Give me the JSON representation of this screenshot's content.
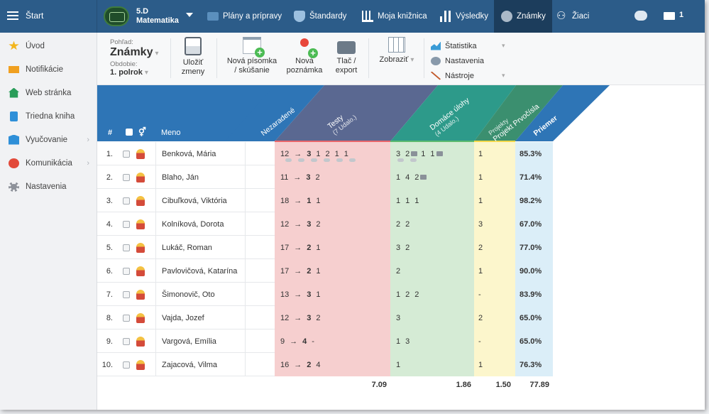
{
  "topbar": {
    "start_label": "Štart",
    "class_name": "5.D",
    "class_subject": "Matematika",
    "nav": [
      {
        "label": "Plány a prípravy",
        "icon": "plans-icon"
      },
      {
        "label": "Štandardy",
        "icon": "shield-icon"
      },
      {
        "label": "Moja knižnica",
        "icon": "library-icon"
      },
      {
        "label": "Výsledky",
        "icon": "bar-chart-icon"
      },
      {
        "label": "Známky",
        "icon": "grades-icon"
      },
      {
        "label": "Žiaci",
        "icon": "students-icon"
      }
    ],
    "active_nav": "Známky",
    "mail_count": "1"
  },
  "sidebar": {
    "items": [
      {
        "label": "Úvod",
        "icon": "star-icon"
      },
      {
        "label": "Notifikácie",
        "icon": "mail-icon"
      },
      {
        "label": "Web stránka",
        "icon": "home-icon"
      },
      {
        "label": "Triedna kniha",
        "icon": "book-icon"
      },
      {
        "label": "Vyučovanie",
        "icon": "teaching-icon"
      },
      {
        "label": "Komunikácia",
        "icon": "chat-icon"
      },
      {
        "label": "Nastavenia",
        "icon": "gear-icon"
      }
    ]
  },
  "toolbar": {
    "view_label": "Pohľad:",
    "view_value": "Známky",
    "period_label": "Obdobie:",
    "period_value": "1. polrok",
    "save_label_1": "Uložiť",
    "save_label_2": "zmeny",
    "newtest_label_1": "Nová písomka",
    "newtest_label_2": "/ skúšanie",
    "note_label_1": "Nová",
    "note_label_2": "poznámka",
    "print_label_1": "Tlač /",
    "print_label_2": "export",
    "show_label": "Zobraziť",
    "list": [
      "Štatistika",
      "Nastavenia",
      "Nástroje"
    ]
  },
  "grid": {
    "headers": {
      "num": "#",
      "name": "Meno",
      "unsorted": "Nezaradené",
      "tests": "Testy",
      "tests_sub": "(7 Udalo.)",
      "homework": "Domáce úlohy",
      "homework_sub": "(4 Udalo.)",
      "projects_small": "Projekty",
      "projects": "Projekt Prvočísla",
      "average": "Priemer"
    },
    "rows": [
      {
        "num": "1.",
        "name": "Benková, Mária",
        "tests_prefix": "12",
        "tests_bold": "3",
        "tests_rest": [
          "1",
          "2",
          "1",
          "1"
        ],
        "hw": [
          "3",
          "2 cmt",
          "1",
          "1 cmt"
        ],
        "proj": "1",
        "avg": "85.3%"
      },
      {
        "num": "2.",
        "name": "Blaho, Ján",
        "tests_prefix": "11",
        "tests_bold": "3",
        "tests_rest": [
          "2"
        ],
        "hw": [
          "1",
          "4",
          "2 cmt"
        ],
        "proj": "1",
        "avg": "71.4%"
      },
      {
        "num": "3.",
        "name": "Cibuľková, Viktória",
        "tests_prefix": "18",
        "tests_bold": "1",
        "tests_rest": [
          "1"
        ],
        "hw": [
          "1",
          "1",
          "1"
        ],
        "proj": "1",
        "avg": "98.2%"
      },
      {
        "num": "4.",
        "name": "Kolníková, Dorota",
        "tests_prefix": "12",
        "tests_bold": "3",
        "tests_rest": [
          "2"
        ],
        "hw": [
          "2",
          "2"
        ],
        "proj": "3",
        "avg": "67.0%"
      },
      {
        "num": "5.",
        "name": "Lukáč, Roman",
        "tests_prefix": "17",
        "tests_bold": "2",
        "tests_rest": [
          "1"
        ],
        "hw": [
          "3",
          "2"
        ],
        "proj": "2",
        "avg": "77.0%"
      },
      {
        "num": "6.",
        "name": "Pavlovičová, Katarína",
        "tests_prefix": "17",
        "tests_bold": "2",
        "tests_rest": [
          "1"
        ],
        "hw": [
          "2"
        ],
        "proj": "1",
        "avg": "90.0%"
      },
      {
        "num": "7.",
        "name": "Šimonovič, Oto",
        "tests_prefix": "13",
        "tests_bold": "3",
        "tests_rest": [
          "1"
        ],
        "hw": [
          "1",
          "2",
          "2"
        ],
        "proj": "-",
        "avg": "83.9%"
      },
      {
        "num": "8.",
        "name": "Vajda, Jozef",
        "tests_prefix": "12",
        "tests_bold": "3",
        "tests_rest": [
          "2"
        ],
        "hw": [
          "3"
        ],
        "proj": "2",
        "avg": "65.0%"
      },
      {
        "num": "9.",
        "name": "Vargová, Emília",
        "tests_prefix": "9",
        "tests_bold": "4",
        "tests_rest": [
          "-"
        ],
        "hw": [
          "1",
          "3"
        ],
        "proj": "-",
        "avg": "65.0%"
      },
      {
        "num": "10.",
        "name": "Zajacová, Vilma",
        "tests_prefix": "16",
        "tests_bold": "2",
        "tests_rest": [
          "4"
        ],
        "hw": [
          "1"
        ],
        "proj": "1",
        "avg": "76.3%"
      }
    ],
    "totals": {
      "tests": "7.09",
      "homework": "1.86",
      "projects": "1.50",
      "average": "77.89"
    },
    "arrow": "→"
  },
  "colors": {
    "topbar": "#2c5c89",
    "active_nav": "#1c3d5c",
    "tests_bg": "#f6cfcf",
    "homework_bg": "#d5ebd5",
    "projects_bg": "#fcf6cc",
    "average_bg": "#dbeef8"
  }
}
